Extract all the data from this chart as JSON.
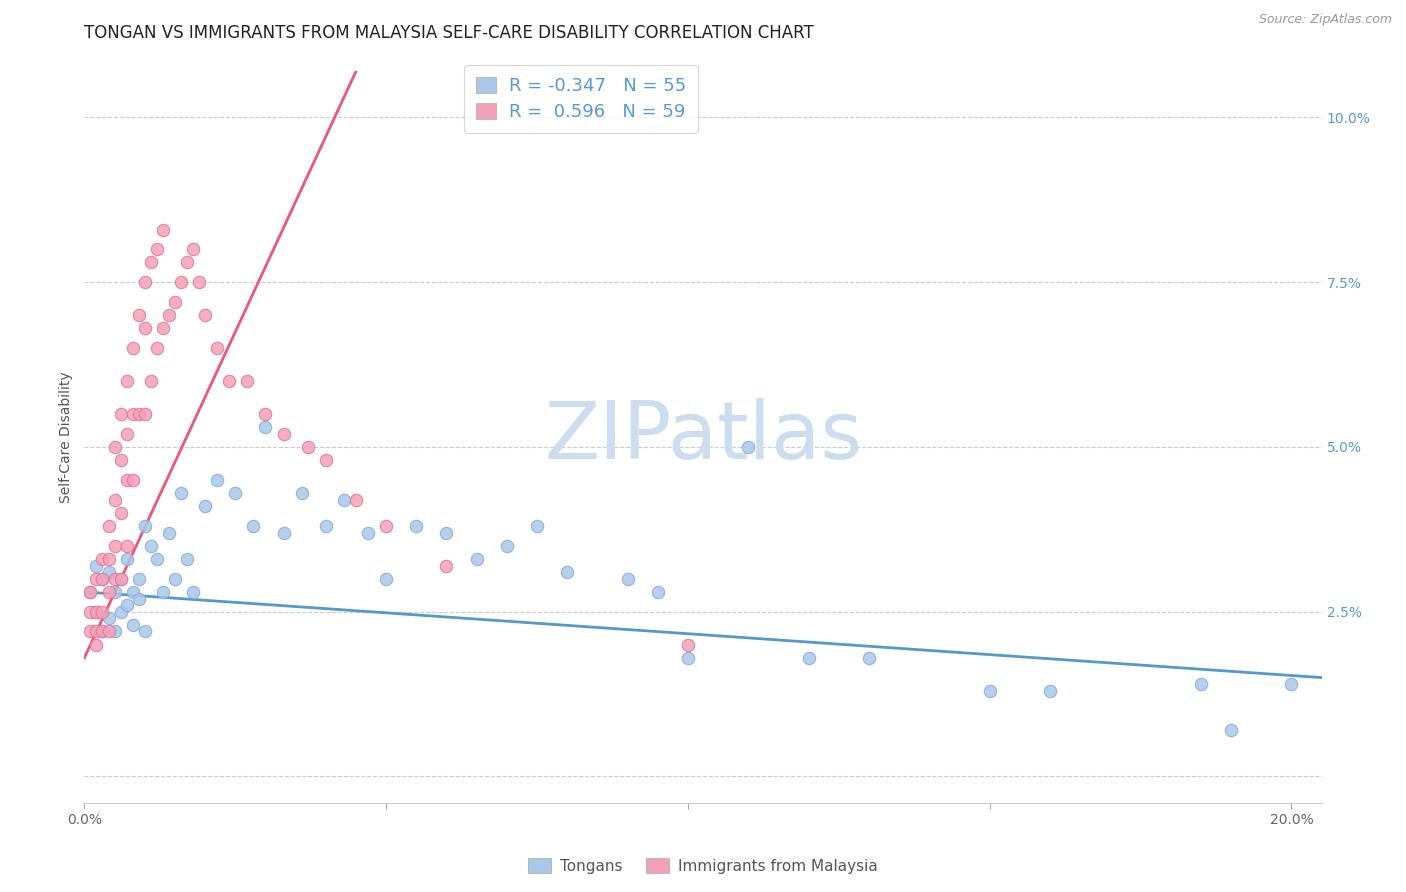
{
  "title": "TONGAN VS IMMIGRANTS FROM MALAYSIA SELF-CARE DISABILITY CORRELATION CHART",
  "source": "Source: ZipAtlas.com",
  "ylabel": "Self-Care Disability",
  "xlim": [
    0.0,
    0.205
  ],
  "ylim": [
    -0.004,
    0.107
  ],
  "tongan_R": "-0.347",
  "tongan_N": "55",
  "malaysia_R": "0.596",
  "malaysia_N": "59",
  "tongan_color": "#a8c8e8",
  "malaysia_color": "#f4a0b8",
  "tongan_line_color": "#5599cc",
  "malaysia_line_color": "#ee5577",
  "legend_label_tongan": "Tongans",
  "legend_label_malaysia": "Immigrants from Malaysia",
  "watermark": "ZIPatlas",
  "watermark_color": "#ccddf0",
  "tongan_scatter_x": [
    0.001,
    0.002,
    0.002,
    0.003,
    0.003,
    0.004,
    0.004,
    0.005,
    0.005,
    0.006,
    0.006,
    0.007,
    0.007,
    0.008,
    0.008,
    0.009,
    0.009,
    0.01,
    0.01,
    0.011,
    0.012,
    0.013,
    0.014,
    0.015,
    0.016,
    0.017,
    0.018,
    0.02,
    0.022,
    0.025,
    0.028,
    0.03,
    0.033,
    0.036,
    0.04,
    0.043,
    0.047,
    0.05,
    0.055,
    0.06,
    0.065,
    0.07,
    0.075,
    0.08,
    0.09,
    0.095,
    0.1,
    0.11,
    0.12,
    0.13,
    0.15,
    0.16,
    0.185,
    0.19,
    0.2
  ],
  "tongan_scatter_y": [
    0.028,
    0.025,
    0.032,
    0.03,
    0.022,
    0.031,
    0.024,
    0.028,
    0.022,
    0.03,
    0.025,
    0.033,
    0.026,
    0.028,
    0.023,
    0.03,
    0.027,
    0.038,
    0.022,
    0.035,
    0.033,
    0.028,
    0.037,
    0.03,
    0.043,
    0.033,
    0.028,
    0.041,
    0.045,
    0.043,
    0.038,
    0.053,
    0.037,
    0.043,
    0.038,
    0.042,
    0.037,
    0.03,
    0.038,
    0.037,
    0.033,
    0.035,
    0.038,
    0.031,
    0.03,
    0.028,
    0.018,
    0.05,
    0.018,
    0.018,
    0.013,
    0.013,
    0.014,
    0.007,
    0.014
  ],
  "malaysia_scatter_x": [
    0.001,
    0.001,
    0.001,
    0.002,
    0.002,
    0.002,
    0.002,
    0.003,
    0.003,
    0.003,
    0.003,
    0.004,
    0.004,
    0.004,
    0.004,
    0.005,
    0.005,
    0.005,
    0.005,
    0.006,
    0.006,
    0.006,
    0.006,
    0.007,
    0.007,
    0.007,
    0.007,
    0.008,
    0.008,
    0.008,
    0.009,
    0.009,
    0.01,
    0.01,
    0.01,
    0.011,
    0.011,
    0.012,
    0.012,
    0.013,
    0.013,
    0.014,
    0.015,
    0.016,
    0.017,
    0.018,
    0.019,
    0.02,
    0.022,
    0.024,
    0.027,
    0.03,
    0.033,
    0.037,
    0.04,
    0.045,
    0.05,
    0.06,
    0.1
  ],
  "malaysia_scatter_y": [
    0.028,
    0.025,
    0.022,
    0.03,
    0.025,
    0.022,
    0.02,
    0.033,
    0.03,
    0.025,
    0.022,
    0.038,
    0.033,
    0.028,
    0.022,
    0.05,
    0.042,
    0.035,
    0.03,
    0.055,
    0.048,
    0.04,
    0.03,
    0.06,
    0.052,
    0.045,
    0.035,
    0.065,
    0.055,
    0.045,
    0.07,
    0.055,
    0.075,
    0.068,
    0.055,
    0.078,
    0.06,
    0.08,
    0.065,
    0.083,
    0.068,
    0.07,
    0.072,
    0.075,
    0.078,
    0.08,
    0.075,
    0.07,
    0.065,
    0.06,
    0.06,
    0.055,
    0.052,
    0.05,
    0.048,
    0.042,
    0.038,
    0.032,
    0.02
  ],
  "title_fontsize": 12,
  "axis_label_fontsize": 10,
  "tick_fontsize": 10,
  "legend_fontsize": 12
}
